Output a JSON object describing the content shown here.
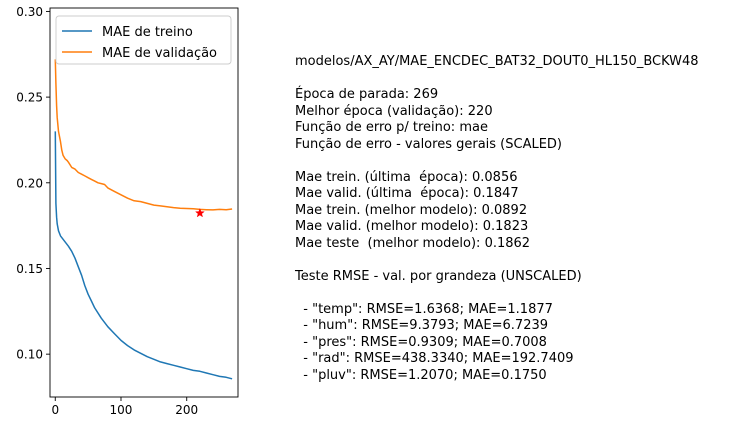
{
  "chart_data": {
    "type": "line",
    "title": "",
    "xlabel": "",
    "ylabel": "",
    "xlim": [
      -8,
      278
    ],
    "ylim": [
      0.075,
      0.302
    ],
    "x_ticks": [
      0,
      100,
      200
    ],
    "x_tick_labels": [
      "0",
      "100",
      "200"
    ],
    "y_ticks": [
      0.1,
      0.15,
      0.2,
      0.25,
      0.3
    ],
    "y_tick_labels": [
      "0.10",
      "0.15",
      "0.20",
      "0.25",
      "0.30"
    ],
    "grid": false,
    "legend_position": "top-left",
    "series": [
      {
        "name": "MAE de treino",
        "color": "#1f77b4",
        "x": [
          0,
          1,
          2,
          3,
          5,
          8,
          12,
          16,
          20,
          25,
          30,
          35,
          40,
          45,
          50,
          55,
          60,
          70,
          80,
          90,
          100,
          110,
          120,
          130,
          140,
          150,
          160,
          170,
          180,
          190,
          200,
          210,
          220,
          230,
          240,
          250,
          260,
          269
        ],
        "y": [
          0.23,
          0.188,
          0.18,
          0.176,
          0.172,
          0.169,
          0.167,
          0.165,
          0.163,
          0.16,
          0.156,
          0.151,
          0.146,
          0.14,
          0.135,
          0.131,
          0.127,
          0.121,
          0.116,
          0.112,
          0.108,
          0.105,
          0.1025,
          0.1005,
          0.0985,
          0.097,
          0.0955,
          0.0945,
          0.0935,
          0.0925,
          0.0915,
          0.0905,
          0.09,
          0.089,
          0.088,
          0.087,
          0.0865,
          0.0856
        ]
      },
      {
        "name": "MAE de validação",
        "color": "#ff7f0e",
        "x": [
          0,
          1,
          2,
          3,
          5,
          8,
          10,
          12,
          15,
          18,
          20,
          25,
          30,
          35,
          40,
          45,
          50,
          55,
          60,
          65,
          70,
          75,
          80,
          90,
          100,
          110,
          120,
          130,
          140,
          150,
          160,
          170,
          180,
          190,
          200,
          210,
          220,
          230,
          240,
          250,
          260,
          269
        ],
        "y": [
          0.272,
          0.258,
          0.245,
          0.238,
          0.23,
          0.224,
          0.219,
          0.216,
          0.214,
          0.213,
          0.212,
          0.209,
          0.208,
          0.206,
          0.205,
          0.204,
          0.203,
          0.202,
          0.201,
          0.2,
          0.1995,
          0.199,
          0.197,
          0.195,
          0.193,
          0.191,
          0.1895,
          0.189,
          0.188,
          0.187,
          0.1865,
          0.186,
          0.1855,
          0.1852,
          0.185,
          0.1848,
          0.1845,
          0.1843,
          0.1842,
          0.1845,
          0.1843,
          0.1847
        ]
      }
    ],
    "markers": [
      {
        "x": 220,
        "y": 0.1823,
        "color": "#ff0000",
        "shape": "star"
      }
    ]
  },
  "info_text": [
    "modelos/AX_AY/MAE_ENCDEC_BAT32_DOUT0_HL150_BCKW48",
    "",
    "Época de parada: 269",
    "Melhor época (validação): 220",
    "Função de erro p/ treino: mae",
    "Função de erro - valores gerais (SCALED)",
    "",
    "Mae trein. (última  época): 0.0856",
    "Mae valid. (última  época): 0.1847",
    "Mae trein. (melhor modelo): 0.0892",
    "Mae valid. (melhor modelo): 0.1823",
    "Mae teste  (melhor modelo): 0.1862",
    "",
    "Teste RMSE - val. por grandeza (UNSCALED)",
    "",
    "  - \"temp\": RMSE=1.6368; MAE=1.1877",
    "  - \"hum\": RMSE=9.3793; MAE=6.7239",
    "  - \"pres\": RMSE=0.9309; MAE=0.7008",
    "  - \"rad\": RMSE=438.3340; MAE=192.7409",
    "  - \"pluv\": RMSE=1.2070; MAE=0.1750"
  ]
}
